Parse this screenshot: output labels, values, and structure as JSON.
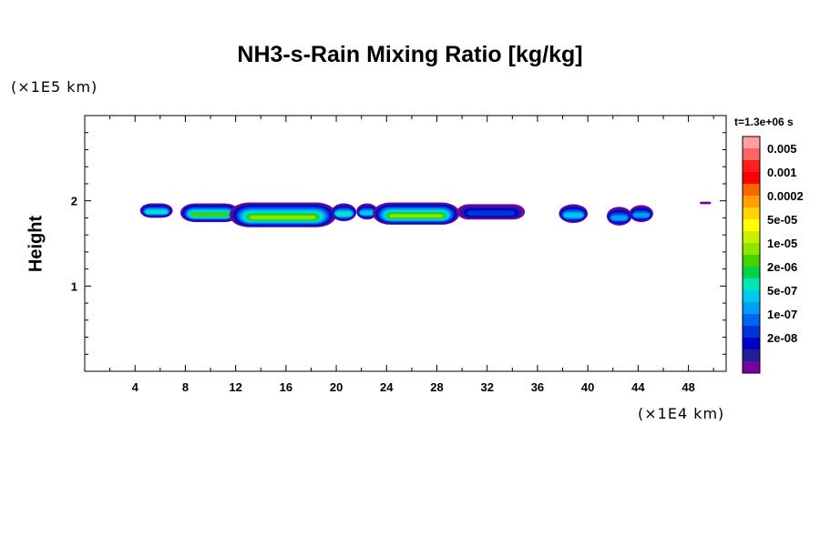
{
  "chart_data": {
    "type": "heatmap",
    "title": "NH3-s-Rain Mixing Ratio [kg/kg]",
    "xlabel": "",
    "ylabel": "Height",
    "x_unit": "(×1E4 km)",
    "y_unit": "(×1E5 km)",
    "time_label": "t=1.3e+06 s",
    "x_ticks": [
      4,
      8,
      12,
      16,
      20,
      24,
      28,
      32,
      36,
      40,
      44,
      48
    ],
    "y_ticks": [
      1,
      2
    ],
    "xlim": [
      0,
      51
    ],
    "ylim": [
      0,
      3
    ],
    "colorbar": {
      "labels": [
        "0.005",
        "0.001",
        "0.0002",
        "5e-05",
        "1e-05",
        "2e-06",
        "5e-07",
        "1e-07",
        "2e-08"
      ],
      "colors": [
        "#ff9f9f",
        "#ff6464",
        "#ff1e1e",
        "#ff0000",
        "#ff6400",
        "#ffa000",
        "#ffd200",
        "#ffff00",
        "#c8f000",
        "#8ce600",
        "#46d200",
        "#00d24a",
        "#00e6b4",
        "#00c8f0",
        "#009ff5",
        "#0064f0",
        "#0032dc",
        "#0000c8",
        "#1e1e96",
        "#7a00a0"
      ]
    },
    "cloud_bands": [
      {
        "x0": 4.4,
        "x1": 7.0,
        "ybot": 1.8,
        "ytop": 1.97,
        "core": "#00e6b4"
      },
      {
        "x0": 7.6,
        "x1": 12.3,
        "ybot": 1.75,
        "ytop": 1.97,
        "core": "#46d200"
      },
      {
        "x0": 11.5,
        "x1": 20.0,
        "ybot": 1.69,
        "ytop": 1.98,
        "core": "#8ce600"
      },
      {
        "x0": 19.6,
        "x1": 21.6,
        "ybot": 1.76,
        "ytop": 1.97,
        "core": "#00e6b4"
      },
      {
        "x0": 21.6,
        "x1": 23.3,
        "ybot": 1.78,
        "ytop": 1.97,
        "core": "#00c8f0"
      },
      {
        "x0": 22.9,
        "x1": 29.8,
        "ybot": 1.72,
        "ytop": 1.98,
        "core": "#8ce600"
      },
      {
        "x0": 29.6,
        "x1": 35.0,
        "ybot": 1.78,
        "ytop": 1.96,
        "core": "#0032dc"
      },
      {
        "x0": 37.7,
        "x1": 40.0,
        "ybot": 1.74,
        "ytop": 1.96,
        "core": "#00c8f0"
      },
      {
        "x0": 41.5,
        "x1": 43.5,
        "ybot": 1.71,
        "ytop": 1.93,
        "core": "#009ff5"
      },
      {
        "x0": 43.3,
        "x1": 45.2,
        "ybot": 1.75,
        "ytop": 1.95,
        "core": "#009ff5"
      },
      {
        "x0": 48.9,
        "x1": 49.8,
        "ybot": 1.96,
        "ytop": 1.99,
        "core": "#7a00a0"
      }
    ]
  }
}
